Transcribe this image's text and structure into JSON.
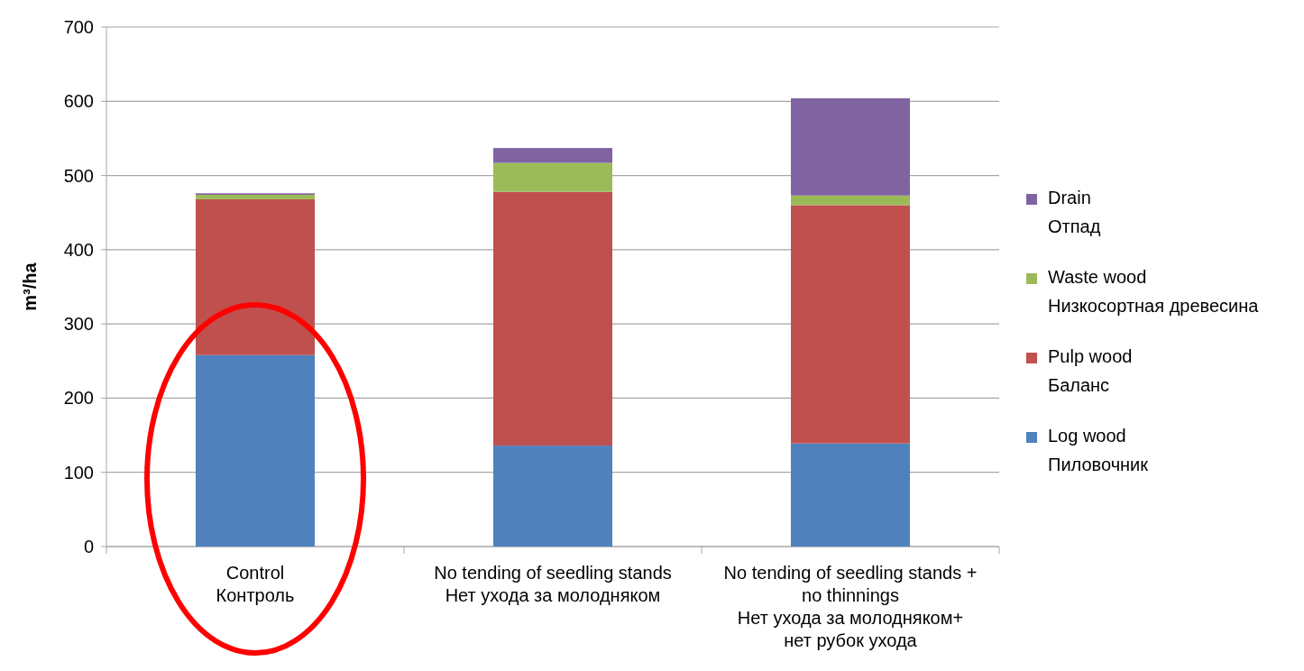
{
  "chart_data": {
    "type": "bar",
    "stacked": true,
    "ylabel": "m³/ha",
    "categories": [
      "Control\nКонтроль",
      "No tending of seedling stands\nНет ухода за молодняком",
      "No tending of seedling stands +\nno thinnings\nНет ухода за молодняком+\nнет рубок ухода"
    ],
    "series": [
      {
        "name": "Log wood\nПиловочник",
        "color": "#4f81bd",
        "values": [
          258,
          136,
          139
        ]
      },
      {
        "name": "Pulp wood\nБаланс",
        "color": "#c0504d",
        "values": [
          210,
          342,
          321
        ]
      },
      {
        "name": "Waste wood\nНизкосортная древесина",
        "color": "#9bbb59",
        "values": [
          6,
          39,
          13
        ]
      },
      {
        "name": "Drain\nОтпад",
        "color": "#8064a2",
        "values": [
          2,
          20,
          131
        ]
      }
    ],
    "ylim": [
      0,
      700
    ],
    "yticks": [
      0,
      100,
      200,
      300,
      400,
      500,
      600,
      700
    ],
    "grid": "y",
    "legend": "right"
  }
}
